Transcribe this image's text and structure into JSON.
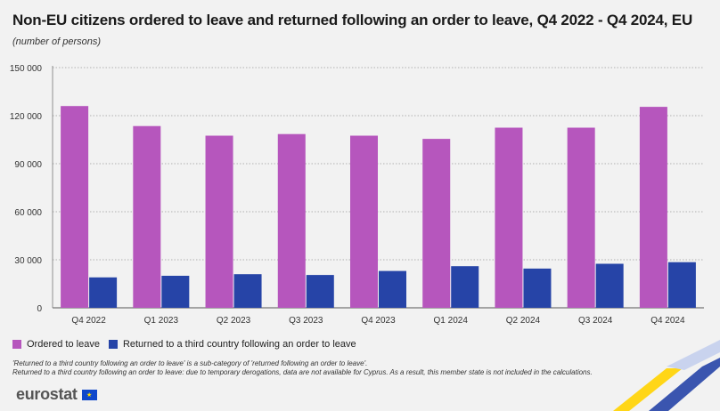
{
  "header": {
    "title": "Non-EU citizens ordered to leave and returned following an order to leave, Q4 2022 - Q4 2024, EU",
    "subtitle": "(number of persons)"
  },
  "chart_data": {
    "type": "bar",
    "categories": [
      "Q4 2022",
      "Q1 2023",
      "Q2 2023",
      "Q3 2023",
      "Q4 2023",
      "Q1 2024",
      "Q2 2024",
      "Q3 2024",
      "Q4 2024"
    ],
    "series": [
      {
        "name": "Ordered to leave",
        "color": "#b656bd",
        "values": [
          126000,
          113500,
          107500,
          108500,
          107500,
          105500,
          112500,
          112500,
          125500
        ]
      },
      {
        "name": "Returned to a third country following an order to leave",
        "color": "#2644a7",
        "values": [
          19000,
          20000,
          21000,
          20500,
          23000,
          26000,
          24500,
          27500,
          28500
        ]
      }
    ],
    "yticks": [
      0,
      30000,
      60000,
      90000,
      120000,
      150000
    ],
    "ytick_labels": [
      "0",
      "30 000",
      "60 000",
      "90 000",
      "120 000",
      "150 000"
    ],
    "ylim": [
      0,
      150000
    ],
    "xlabel": "",
    "ylabel": ""
  },
  "legend": {
    "items": [
      {
        "label": "Ordered to leave",
        "color": "#b656bd"
      },
      {
        "label": "Returned to a third country following an order to leave",
        "color": "#2644a7"
      }
    ]
  },
  "notes": {
    "note1": "'Returned to a third country following an order to leave' is a sub-category of 'returned following an order to leave'.",
    "note2": "Returned to a third country following an order to leave: due to temporary derogations, data are not available for Cyprus. As a result, this member state is not included in the calculations."
  },
  "logo": {
    "text": "eurostat",
    "flag_stars": "★"
  },
  "colors": {
    "background": "#f2f2f2",
    "grid": "#999999",
    "accent_yellow": "#ffd617",
    "accent_blue": "#2644a7"
  }
}
